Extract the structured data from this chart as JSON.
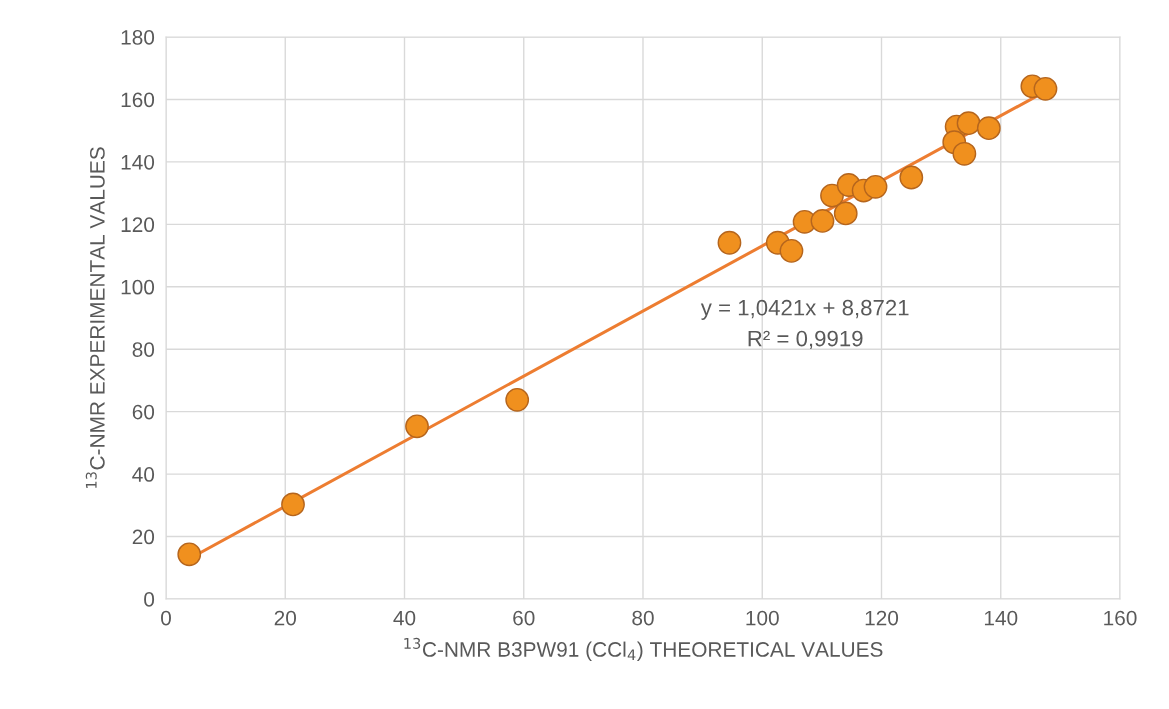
{
  "chart_data": {
    "type": "scatter",
    "xlabel": "$^{13}$C-NMR B3PW91 (CCl$_{4}$) THEORETICAL VALUES",
    "ylabel": "$^{13}$C-NMR EXPERIMENTAL VALUES",
    "annotations": [
      "y = 1,0421x + 8,8721",
      "R² = 0,9919"
    ],
    "series": [
      {
        "color": "#f0901e",
        "marker": "circle",
        "x": [
          3.9,
          21.3,
          42.1,
          58.9,
          94.5,
          102.6,
          104.9,
          107.1,
          110.1,
          111.7,
          114.0,
          114.5,
          117.0,
          119.0,
          125.0,
          132.6,
          134.6,
          138.0,
          132.2,
          133.9,
          145.3,
          147.5
        ],
        "values": [
          14.3,
          30.3,
          55.3,
          63.8,
          114.1,
          114.1,
          111.5,
          120.8,
          121.1,
          129.2,
          123.5,
          132.6,
          130.8,
          132.0,
          135.0,
          151.3,
          152.4,
          150.8,
          146.3,
          142.6,
          164.2,
          163.4
        ]
      },
      {
        "type": "line",
        "color": "#ed7d31",
        "line_style": "solid",
        "x": [
          3.9,
          147.5
        ],
        "values": [
          12.9,
          162.6
        ]
      }
    ],
    "xlim": [
      0,
      160
    ],
    "xticks": [
      0,
      20,
      40,
      60,
      80,
      100,
      120,
      140,
      160
    ],
    "ylim": [
      0,
      180
    ],
    "yticks": [
      0,
      20,
      40,
      60,
      80,
      100,
      120,
      140,
      160,
      180
    ],
    "grid": true
  }
}
